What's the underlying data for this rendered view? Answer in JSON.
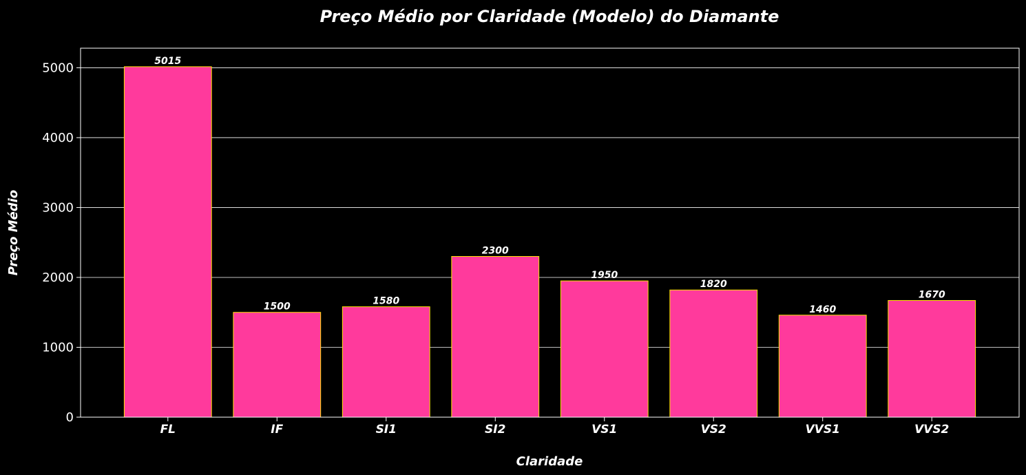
{
  "chart_data": {
    "type": "bar",
    "title": "Preço Médio por Claridade (Modelo) do Diamante",
    "xlabel": "Claridade",
    "ylabel": "Preço Médio",
    "categories": [
      "FL",
      "IF",
      "SI1",
      "SI2",
      "VS1",
      "VS2",
      "VVS1",
      "VVS2"
    ],
    "values": [
      5015,
      1500,
      1580,
      2300,
      1950,
      1820,
      1460,
      1670
    ],
    "data_labels": [
      "5015",
      "1500",
      "1580",
      "2300",
      "1950",
      "1820",
      "1460",
      "1670"
    ],
    "yticks": [
      0,
      1000,
      2000,
      3000,
      4000,
      5000
    ],
    "ylim": [
      0,
      5280
    ],
    "grid": "y",
    "legend": "none",
    "colors": {
      "background": "#000000",
      "bar_fill": "#ff3a9c",
      "bar_edge": "#ffe600",
      "grid": "#ffffff",
      "text": "#ffffff"
    }
  }
}
